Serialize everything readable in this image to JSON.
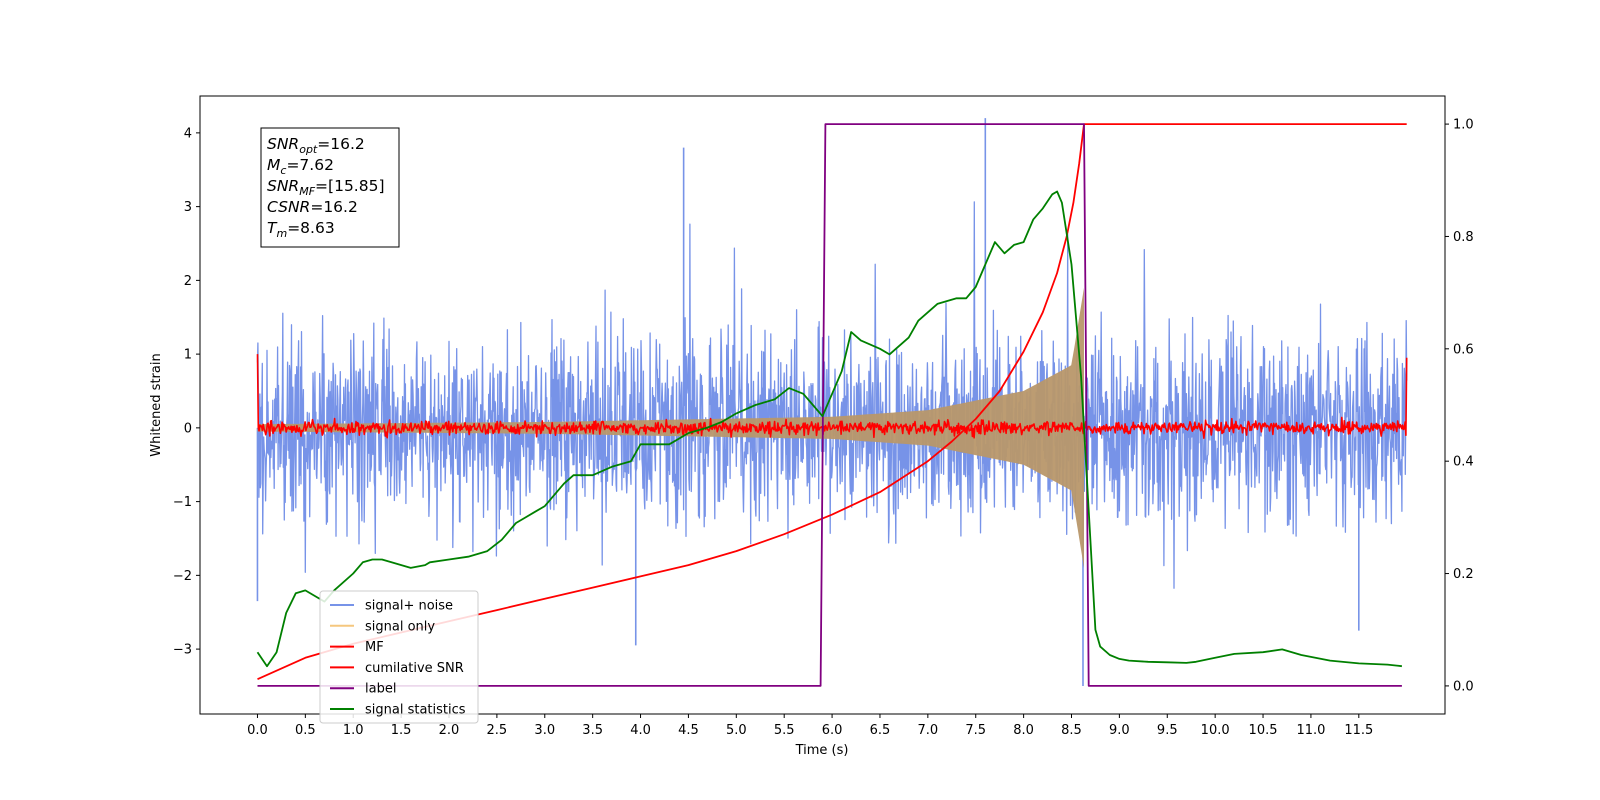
{
  "chart_data": {
    "type": "line",
    "title": "",
    "xlabel": "Time (s)",
    "ylabel": "Whitened strain",
    "y2label": "",
    "xlim": [
      -0.6,
      12.4
    ],
    "ylim": [
      -3.88,
      4.5
    ],
    "y2lim": [
      -0.05,
      1.05
    ],
    "x_ticks": [
      0.0,
      0.5,
      1.0,
      1.5,
      2.0,
      2.5,
      3.0,
      3.5,
      4.0,
      4.5,
      5.0,
      5.5,
      6.0,
      6.5,
      7.0,
      7.5,
      8.0,
      8.5,
      9.0,
      9.5,
      10.0,
      10.5,
      11.0,
      11.5
    ],
    "x_tick_labels": [
      "0.0",
      "0.5",
      "1.0",
      "1.5",
      "2.0",
      "2.5",
      "3.0",
      "3.5",
      "4.0",
      "4.5",
      "5.0",
      "5.5",
      "6.0",
      "6.5",
      "7.0",
      "7.5",
      "8.0",
      "8.5",
      "9.0",
      "9.5",
      "10.0",
      "10.5",
      "11.0",
      "11.5"
    ],
    "y_ticks": [
      -3,
      -2,
      -1,
      0,
      1,
      2,
      3,
      4
    ],
    "y_tick_labels": [
      "−3",
      "−2",
      "−1",
      "0",
      "1",
      "2",
      "3",
      "4"
    ],
    "y2_ticks": [
      0.0,
      0.2,
      0.4,
      0.6,
      0.8,
      1.0
    ],
    "y2_tick_labels": [
      "0.0",
      "0.2",
      "0.4",
      "0.6",
      "0.8",
      "1.0"
    ],
    "grid": false,
    "legend_position": "lower-left",
    "info_box": {
      "position": "upper-left",
      "lines": [
        {
          "symbol": "SNR",
          "sub": "opt",
          "value": "=16.2"
        },
        {
          "symbol": "M",
          "sub": "c",
          "value": "=7.62"
        },
        {
          "symbol": "SNR",
          "sub": "MF",
          "value": "=[15.85]"
        },
        {
          "symbol": "CSNR",
          "sub": "",
          "value": "=16.2"
        },
        {
          "symbol": "T",
          "sub": "m",
          "value": "=8.63"
        }
      ]
    },
    "series": [
      {
        "name": "signal+ noise",
        "axis": "left",
        "color": "#7793e8",
        "kind": "noise",
        "x_range": [
          0.0,
          12.0
        ],
        "band": [
          -1.8,
          1.8
        ],
        "extremes": [
          -2.6,
          3.3
        ],
        "spikes": [
          {
            "x": 7.6,
            "y": 4.2
          },
          {
            "x": 4.45,
            "y": 3.8
          },
          {
            "x": 8.62,
            "y": -3.5
          },
          {
            "x": 0.0,
            "y": -2.35
          },
          {
            "x": 3.95,
            "y": -2.95
          },
          {
            "x": 11.5,
            "y": -2.75
          }
        ]
      },
      {
        "name": "signal only",
        "axis": "left",
        "color": "#f5c77e",
        "kind": "chirp",
        "x_range": [
          0.0,
          8.63
        ],
        "amplitude_at": [
          {
            "x": 0.0,
            "y": 0.05
          },
          {
            "x": 3.0,
            "y": 0.08
          },
          {
            "x": 6.0,
            "y": 0.15
          },
          {
            "x": 7.0,
            "y": 0.24
          },
          {
            "x": 8.0,
            "y": 0.5
          },
          {
            "x": 8.5,
            "y": 0.85
          },
          {
            "x": 8.63,
            "y": 1.9
          }
        ]
      },
      {
        "name": "MF",
        "axis": "left",
        "color": "#ff0000",
        "kind": "mf",
        "x_range": [
          0.0,
          12.0
        ],
        "base": 0.0,
        "jitter": 0.09,
        "edge_values": [
          1.0,
          0.95
        ]
      },
      {
        "name": "cumilative SNR",
        "axis": "right",
        "color": "#ff0000",
        "kind": "line",
        "x": [
          0.0,
          0.5,
          1.0,
          1.5,
          2.0,
          2.5,
          3.0,
          3.5,
          4.0,
          4.5,
          5.0,
          5.5,
          6.0,
          6.5,
          7.0,
          7.25,
          7.5,
          7.75,
          8.0,
          8.2,
          8.35,
          8.45,
          8.52,
          8.58,
          8.63,
          12.0
        ],
        "y": [
          0.012,
          0.05,
          0.075,
          0.095,
          0.115,
          0.135,
          0.155,
          0.175,
          0.195,
          0.215,
          0.24,
          0.27,
          0.305,
          0.345,
          0.4,
          0.435,
          0.475,
          0.525,
          0.595,
          0.665,
          0.735,
          0.8,
          0.86,
          0.93,
          1.0,
          1.0
        ]
      },
      {
        "name": "label",
        "axis": "right",
        "color": "#800080",
        "kind": "line",
        "x": [
          0.0,
          5.88,
          5.93,
          8.63,
          8.68,
          11.95
        ],
        "y": [
          0.0,
          0.0,
          1.0,
          1.0,
          0.0,
          0.0
        ]
      },
      {
        "name": "signal statistics",
        "axis": "right",
        "color": "#008000",
        "kind": "line",
        "x": [
          0.0,
          0.1,
          0.2,
          0.3,
          0.4,
          0.5,
          0.6,
          0.7,
          0.8,
          1.0,
          1.1,
          1.2,
          1.3,
          1.4,
          1.6,
          1.75,
          1.8,
          2.0,
          2.2,
          2.4,
          2.55,
          2.7,
          2.8,
          2.9,
          3.0,
          3.1,
          3.2,
          3.3,
          3.5,
          3.7,
          3.9,
          4.0,
          4.1,
          4.3,
          4.5,
          4.7,
          4.85,
          5.0,
          5.2,
          5.4,
          5.55,
          5.7,
          5.8,
          5.9,
          6.0,
          6.1,
          6.2,
          6.3,
          6.5,
          6.6,
          6.8,
          6.9,
          7.1,
          7.3,
          7.4,
          7.5,
          7.6,
          7.7,
          7.75,
          7.8,
          7.9,
          8.0,
          8.1,
          8.2,
          8.3,
          8.35,
          8.4,
          8.5,
          8.6,
          8.7,
          8.75,
          8.8,
          8.9,
          9.0,
          9.1,
          9.3,
          9.5,
          9.7,
          9.8,
          10.0,
          10.2,
          10.5,
          10.7,
          10.9,
          11.2,
          11.5,
          11.8,
          11.95
        ],
        "y": [
          0.06,
          0.035,
          0.06,
          0.13,
          0.165,
          0.17,
          0.16,
          0.15,
          0.17,
          0.2,
          0.22,
          0.225,
          0.225,
          0.22,
          0.21,
          0.215,
          0.22,
          0.225,
          0.23,
          0.24,
          0.26,
          0.29,
          0.3,
          0.31,
          0.32,
          0.34,
          0.36,
          0.375,
          0.375,
          0.39,
          0.4,
          0.43,
          0.43,
          0.43,
          0.45,
          0.46,
          0.47,
          0.485,
          0.5,
          0.51,
          0.53,
          0.52,
          0.5,
          0.48,
          0.52,
          0.56,
          0.63,
          0.615,
          0.6,
          0.59,
          0.62,
          0.65,
          0.68,
          0.69,
          0.69,
          0.71,
          0.75,
          0.79,
          0.78,
          0.77,
          0.785,
          0.79,
          0.83,
          0.85,
          0.875,
          0.88,
          0.86,
          0.75,
          0.55,
          0.25,
          0.1,
          0.07,
          0.055,
          0.048,
          0.045,
          0.043,
          0.042,
          0.041,
          0.043,
          0.05,
          0.057,
          0.06,
          0.065,
          0.055,
          0.045,
          0.04,
          0.038,
          0.035
        ]
      }
    ]
  }
}
